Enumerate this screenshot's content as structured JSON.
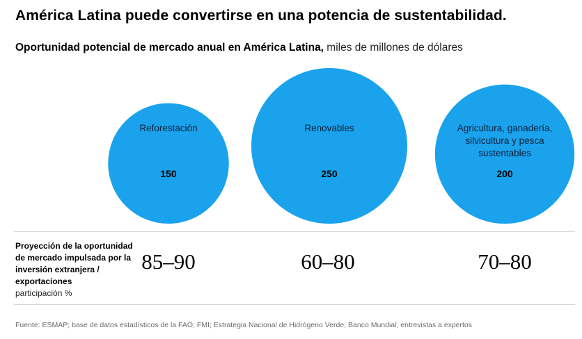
{
  "title": "América Latina puede convertirse en una potencia de sustentabilidad.",
  "subtitle": {
    "bold": "Oportunidad potencial de mercado anual en América Latina,",
    "units": " miles de millones de dólares"
  },
  "chart_data": {
    "type": "bubble",
    "title": "Oportunidad potencial de mercado anual en América Latina",
    "units": "miles de millones de dólares",
    "color": "#1aa3ec",
    "categories": [
      "Reforestación",
      "Renovables",
      "Agricultura, ganadería, silvicultura y pesca sustentables"
    ],
    "label_lines": [
      [
        "Reforestación"
      ],
      [
        "Renovables"
      ],
      [
        "Agricultura, ganadería,",
        "silvicultura y pesca",
        "sustentables"
      ]
    ],
    "values": [
      150,
      250,
      200
    ]
  },
  "projection": {
    "label_bold": "Proyección de la oportunidad de mercado impulsada por la inversión extranjera / exportaciones",
    "label_sub": "participación %",
    "ranges": [
      "85–90",
      "60–80",
      "70–80"
    ]
  },
  "source": "Fuente: ESMAP; base de datos estadísticos de la FAO; FMI; Estrategia Nacional de Hidrógeno Verde; Banco Mundial; entrevistas a expertos"
}
